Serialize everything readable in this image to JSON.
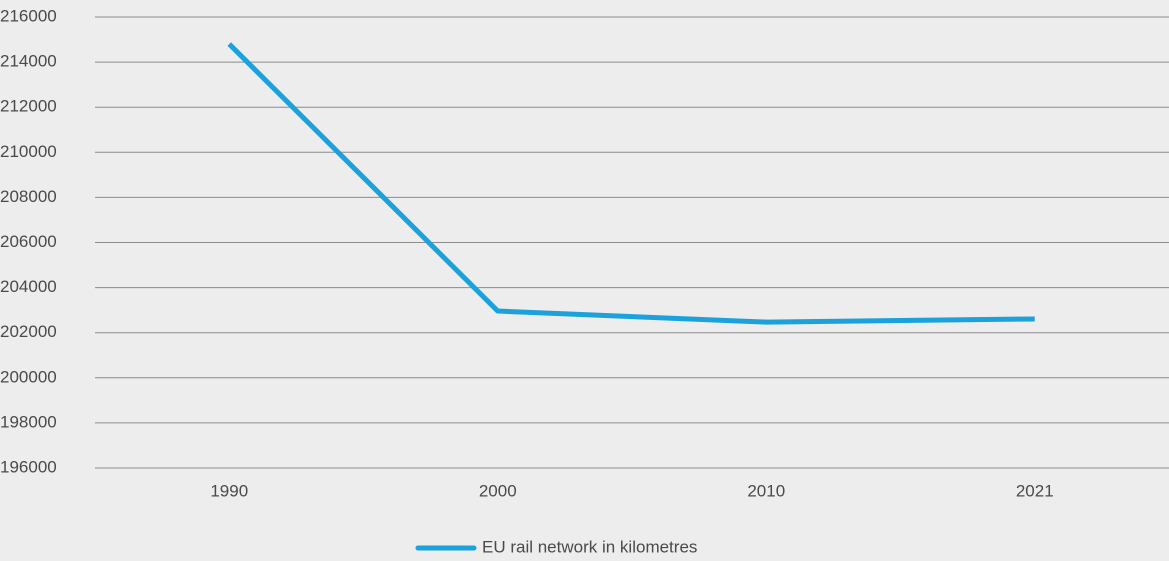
{
  "chart_data": {
    "type": "line",
    "categories": [
      "1990",
      "2000",
      "2010",
      "2021"
    ],
    "series": [
      {
        "name": "EU rail network in kilometres",
        "color": "#1ba1db",
        "values": [
          214800,
          202960,
          202470,
          202610
        ]
      }
    ],
    "ylim": [
      196000,
      216000
    ],
    "yticks": [
      196000,
      198000,
      200000,
      202000,
      204000,
      206000,
      208000,
      210000,
      212000,
      214000,
      216000
    ],
    "grid": true,
    "legend": "bottom"
  }
}
